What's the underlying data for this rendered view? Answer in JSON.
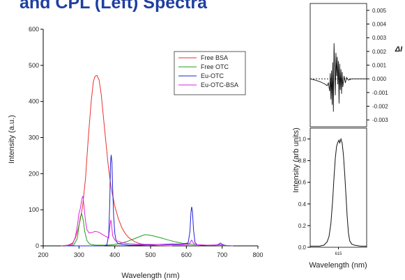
{
  "title": "and CPL (Left) Spectra",
  "chart_data": [
    {
      "type": "line",
      "xlabel": "Wavelength (nm)",
      "ylabel": "Intensity (a.u.)",
      "xlim": [
        200,
        800
      ],
      "ylim": [
        0,
        600
      ],
      "x_ticks": [
        "200",
        "300",
        "400",
        "500",
        "600",
        "700",
        "800"
      ],
      "y_ticks": [
        "0",
        "100",
        "200",
        "300",
        "400",
        "500",
        "600"
      ],
      "legend_position": "top-right",
      "legend_box": true,
      "grid": false,
      "series": [
        {
          "name": "Free BSA",
          "color": "#e8312e",
          "points": [
            [
              250,
              0
            ],
            [
              270,
              2
            ],
            [
              282,
              8
            ],
            [
              290,
              22
            ],
            [
              297,
              45
            ],
            [
              303,
              70
            ],
            [
              310,
              110
            ],
            [
              318,
              185
            ],
            [
              326,
              300
            ],
            [
              334,
              400
            ],
            [
              340,
              455
            ],
            [
              345,
              470
            ],
            [
              350,
              472
            ],
            [
              356,
              460
            ],
            [
              362,
              420
            ],
            [
              368,
              360
            ],
            [
              375,
              290
            ],
            [
              382,
              220
            ],
            [
              390,
              160
            ],
            [
              400,
              110
            ],
            [
              410,
              75
            ],
            [
              420,
              50
            ],
            [
              430,
              33
            ],
            [
              440,
              22
            ],
            [
              455,
              12
            ],
            [
              470,
              6
            ],
            [
              490,
              3
            ],
            [
              520,
              1
            ],
            [
              560,
              0
            ]
          ]
        },
        {
          "name": "Free OTC",
          "color": "#1f9e1f",
          "points": [
            [
              260,
              0
            ],
            [
              285,
              2
            ],
            [
              295,
              20
            ],
            [
              300,
              55
            ],
            [
              304,
              82
            ],
            [
              308,
              88
            ],
            [
              312,
              70
            ],
            [
              316,
              40
            ],
            [
              322,
              15
            ],
            [
              330,
              5
            ],
            [
              345,
              2
            ],
            [
              380,
              2
            ],
            [
              400,
              4
            ],
            [
              420,
              8
            ],
            [
              440,
              14
            ],
            [
              460,
              22
            ],
            [
              475,
              28
            ],
            [
              485,
              31
            ],
            [
              495,
              30
            ],
            [
              510,
              27
            ],
            [
              530,
              22
            ],
            [
              550,
              16
            ],
            [
              570,
              11
            ],
            [
              590,
              7
            ],
            [
              610,
              5
            ],
            [
              630,
              3
            ],
            [
              650,
              2
            ],
            [
              680,
              1
            ],
            [
              720,
              0
            ]
          ]
        },
        {
          "name": "Eu-OTC",
          "color": "#2020d8",
          "points": [
            [
              260,
              0
            ],
            [
              370,
              0
            ],
            [
              378,
              3
            ],
            [
              383,
              30
            ],
            [
              386,
              120
            ],
            [
              388,
              230
            ],
            [
              390,
              252
            ],
            [
              392,
              230
            ],
            [
              394,
              160
            ],
            [
              397,
              80
            ],
            [
              400,
              35
            ],
            [
              404,
              12
            ],
            [
              410,
              6
            ],
            [
              425,
              4
            ],
            [
              440,
              2
            ],
            [
              470,
              2
            ],
            [
              500,
              3
            ],
            [
              530,
              4
            ],
            [
              560,
              5
            ],
            [
              590,
              5
            ],
            [
              605,
              8
            ],
            [
              610,
              40
            ],
            [
              613,
              95
            ],
            [
              615,
              108
            ],
            [
              617,
              95
            ],
            [
              620,
              45
            ],
            [
              624,
              10
            ],
            [
              630,
              3
            ],
            [
              650,
              2
            ],
            [
              680,
              2
            ],
            [
              690,
              4
            ],
            [
              695,
              8
            ],
            [
              700,
              4
            ],
            [
              710,
              1
            ],
            [
              730,
              0
            ]
          ]
        },
        {
          "name": "Eu-OTC-BSA",
          "color": "#dd22dd",
          "points": [
            [
              260,
              0
            ],
            [
              282,
              5
            ],
            [
              290,
              25
            ],
            [
              296,
              60
            ],
            [
              300,
              90
            ],
            [
              304,
              105
            ],
            [
              308,
              130
            ],
            [
              311,
              138
            ],
            [
              314,
              110
            ],
            [
              318,
              70
            ],
            [
              322,
              45
            ],
            [
              328,
              36
            ],
            [
              336,
              37
            ],
            [
              345,
              40
            ],
            [
              355,
              38
            ],
            [
              365,
              32
            ],
            [
              375,
              26
            ],
            [
              383,
              22
            ],
            [
              387,
              60
            ],
            [
              389,
              72
            ],
            [
              391,
              60
            ],
            [
              394,
              28
            ],
            [
              400,
              16
            ],
            [
              420,
              9
            ],
            [
              440,
              6
            ],
            [
              470,
              4
            ],
            [
              500,
              4
            ],
            [
              540,
              3
            ],
            [
              580,
              3
            ],
            [
              608,
              4
            ],
            [
              612,
              12
            ],
            [
              615,
              16
            ],
            [
              618,
              10
            ],
            [
              625,
              3
            ],
            [
              660,
              2
            ],
            [
              695,
              3
            ],
            [
              700,
              2
            ],
            [
              730,
              0
            ]
          ]
        }
      ]
    },
    {
      "type": "line",
      "title": "",
      "ylabel_right": "ΔI",
      "xlim": [
        570,
        660
      ],
      "ylim": [
        -0.0035,
        0.0055
      ],
      "y_ticks": [
        "0.005",
        "0.004",
        "0.003",
        "0.002",
        "0.001",
        "0.000",
        "-0.001",
        "-0.002",
        "-0.003"
      ],
      "y_tick_values": [
        0.005,
        0.004,
        0.003,
        0.002,
        0.001,
        0.0,
        -0.001,
        -0.002,
        -0.003
      ],
      "series": [
        {
          "color": "#111111",
          "points": [
            [
              570,
              0.0
            ],
            [
              578,
              -0.0001
            ],
            [
              585,
              -0.0002
            ],
            [
              590,
              -0.0003
            ],
            [
              594,
              -0.0004
            ],
            [
              597,
              -0.0005
            ],
            [
              599,
              -0.0003
            ],
            [
              601,
              -0.0009
            ],
            [
              602,
              0.0004
            ],
            [
              603,
              -0.0015
            ],
            [
              604,
              0.0006
            ],
            [
              605,
              -0.0019
            ],
            [
              606,
              0.0012
            ],
            [
              607,
              -0.0024
            ],
            [
              608,
              0.0026
            ],
            [
              609,
              0.0008
            ],
            [
              610,
              -0.0012
            ],
            [
              611,
              0.0019
            ],
            [
              612,
              0.0002
            ],
            [
              613,
              0.0016
            ],
            [
              614,
              -0.0004
            ],
            [
              615,
              0.0013
            ],
            [
              616,
              -0.0018
            ],
            [
              617,
              0.0011
            ],
            [
              618,
              -0.0008
            ],
            [
              619,
              0.0007
            ],
            [
              620,
              -0.0011
            ],
            [
              621,
              0.0005
            ],
            [
              622,
              -0.0006
            ],
            [
              624,
              0.0002
            ],
            [
              626,
              -0.0003
            ],
            [
              628,
              0.0001
            ],
            [
              631,
              -0.0001
            ],
            [
              636,
              0.0
            ],
            [
              645,
              0.0
            ],
            [
              660,
              0.0
            ]
          ]
        }
      ]
    },
    {
      "type": "line",
      "xlabel": "Wavelength (nm)",
      "ylabel": "Intensity (arb units)",
      "xlim": [
        570,
        660
      ],
      "x_ticks": [
        "615"
      ],
      "x_tick_values": [
        615
      ],
      "ylim": [
        0,
        1.1
      ],
      "y_ticks": [
        "0.0",
        "0.2",
        "0.4",
        "0.6",
        "0.8",
        "1.0"
      ],
      "y_tick_values": [
        0.0,
        0.2,
        0.4,
        0.6,
        0.8,
        1.0
      ],
      "series": [
        {
          "color": "#111111",
          "points": [
            [
              570,
              0.01
            ],
            [
              585,
              0.01
            ],
            [
              592,
              0.02
            ],
            [
              597,
              0.05
            ],
            [
              600,
              0.1
            ],
            [
              603,
              0.22
            ],
            [
              606,
              0.45
            ],
            [
              608,
              0.65
            ],
            [
              610,
              0.82
            ],
            [
              612,
              0.93
            ],
            [
              614,
              0.97
            ],
            [
              616,
              0.99
            ],
            [
              617,
              0.96
            ],
            [
              619,
              1.0
            ],
            [
              621,
              0.96
            ],
            [
              623,
              0.85
            ],
            [
              625,
              0.68
            ],
            [
              627,
              0.48
            ],
            [
              629,
              0.28
            ],
            [
              631,
              0.13
            ],
            [
              633,
              0.06
            ],
            [
              636,
              0.03
            ],
            [
              640,
              0.02
            ],
            [
              650,
              0.01
            ],
            [
              660,
              0.01
            ]
          ]
        }
      ]
    }
  ]
}
